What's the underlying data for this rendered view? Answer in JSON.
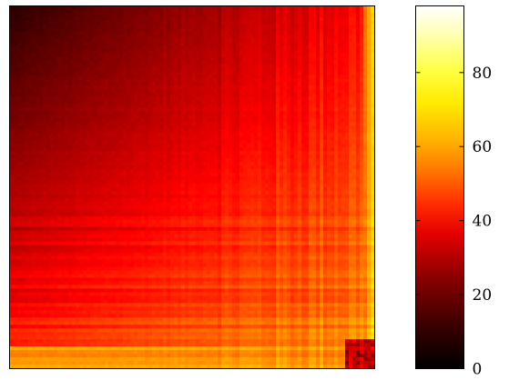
{
  "chart_data": {
    "type": "heatmap",
    "title": "",
    "xlabel": "",
    "ylabel": "",
    "colormap": "hot",
    "colorbar": {
      "range": [
        0,
        98
      ],
      "ticks": [
        0,
        20,
        40,
        60,
        80
      ],
      "tick_labels": [
        "0",
        "20",
        "40",
        "60",
        "80"
      ]
    },
    "description_of_values": {
      "top_left": 6,
      "top_right_edge": 55,
      "center": 30,
      "bottom_left": 38,
      "bottom_edge": 60,
      "bottom_right_corner": 20
    },
    "grid": false,
    "axes_tick_labels_shown": false
  }
}
